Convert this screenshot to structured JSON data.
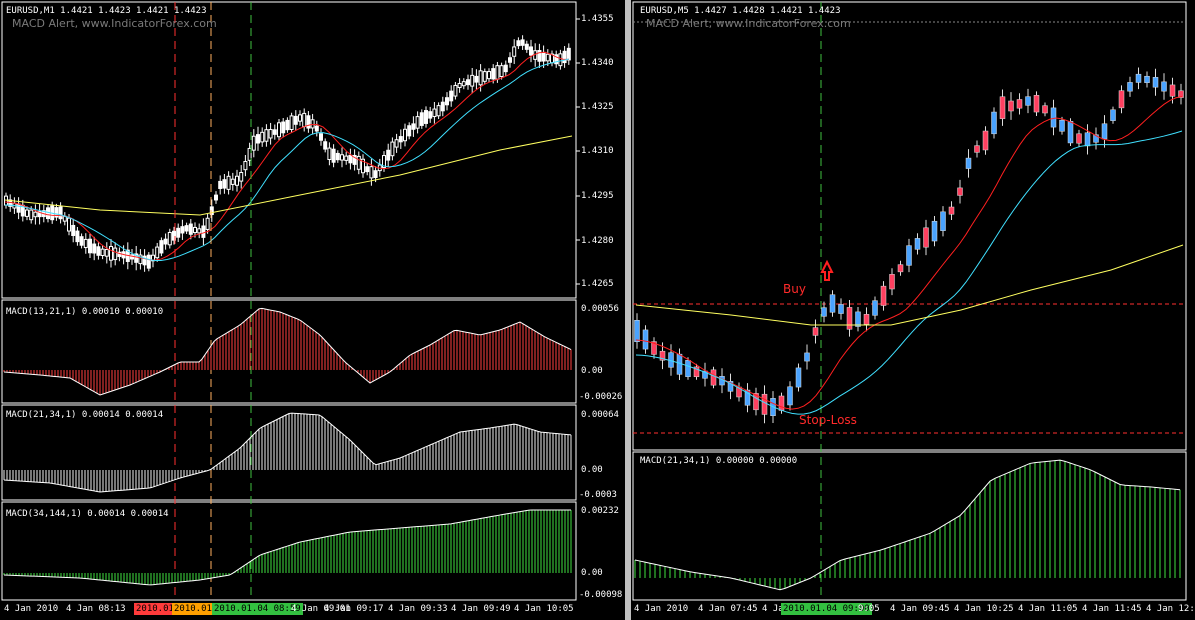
{
  "left": {
    "header": "EURUSD,M1  1.4421 1.4423 1.4421 1.4423",
    "watermark": "MACD Alert, www.IndicatorForex.com",
    "price_ticks": [
      "1.4355",
      "1.4340",
      "1.4325",
      "1.4310",
      "1.4295",
      "1.4280",
      "1.4265"
    ],
    "macd1": {
      "label": "MACD(13,21,1) 0.00010 0.00010",
      "ticks": [
        "0.00056",
        "0.00",
        "-0.00026"
      ]
    },
    "macd2": {
      "label": "MACD(21,34,1) 0.00014 0.00014",
      "ticks": [
        "0.00064",
        "0.00",
        "-0.0003"
      ]
    },
    "macd3": {
      "label": "MACD(34,144,1) 0.00014 0.00014",
      "ticks": [
        "0.00232",
        "0.00",
        "-0.00098"
      ]
    },
    "time_labels": [
      "4 Jan 2010",
      "4 Jan 08:13",
      "4 Jan 09:01",
      "4 Jan 09:17",
      "4 Jan 09:33",
      "4 Jan 09:49",
      "4 Jan 10:05"
    ],
    "time_tags": [
      {
        "text": "2010.01.",
        "color": "#ff3b3b"
      },
      {
        "text": "2010.01.",
        "color": "#ffa000"
      },
      {
        "text": "2010.01.04 08:59",
        "color": "#33c040"
      }
    ]
  },
  "right": {
    "header": "EURUSD,M5  1.4427 1.4428 1.4421 1.4423",
    "watermark": "MACD Alert, www.IndicatorForex.com",
    "buy_label": "Buy",
    "stop_label": "Stop-Loss",
    "macd": {
      "label": "MACD(21,34,1) 0.00000 0.00000"
    },
    "time_labels": [
      "4 Jan 2010",
      "4 Jan 07:45",
      "4 Ja",
      "9:05",
      "4 Jan 09:45",
      "4 Jan 10:25",
      "4 Jan 11:05",
      "4 Jan 11:45",
      "4 Jan 12:"
    ],
    "time_tag": {
      "text": "2010.01.04 09:00",
      "color": "#33c040"
    }
  },
  "colors": {
    "bull_left": "#ffffff",
    "bear_left": "#ffffff",
    "bull_right": "#4aa3ff",
    "bear_right": "#ff4060",
    "ma_fast": "#ff2020",
    "ma_mid": "#40e0ff",
    "ma_slow": "#ffff60",
    "hist_red": "#ff4040",
    "hist_white": "#f0f0f0",
    "hist_green": "#40e040",
    "vline_red": "#ff3030",
    "vline_orange": "#ffb060",
    "vline_green": "#40c040"
  }
}
